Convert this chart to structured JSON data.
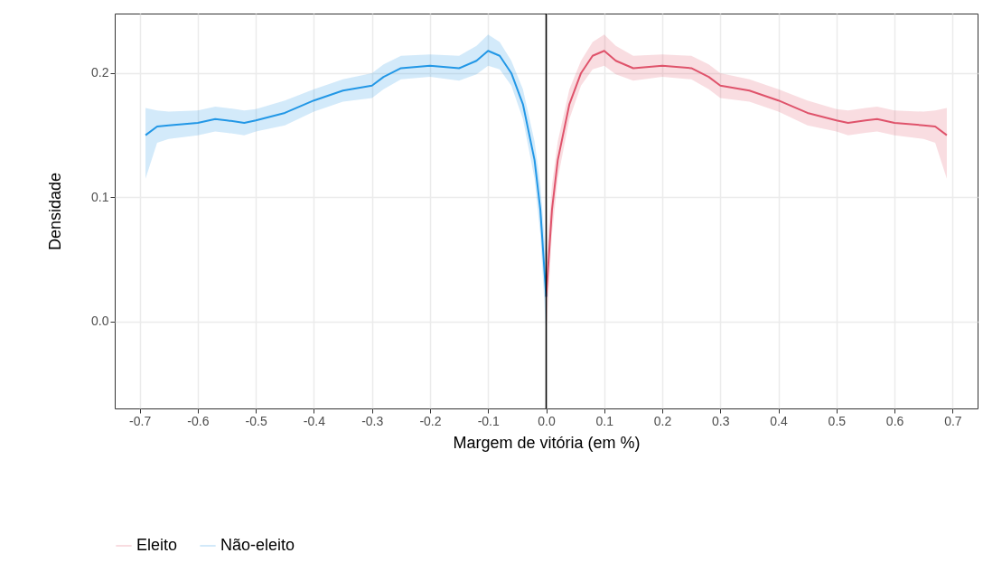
{
  "chart_data": {
    "type": "line",
    "xlabel": "Margem de vitória (em %)",
    "ylabel": "Densidade",
    "x": [
      -0.69,
      -0.67,
      -0.65,
      -0.6,
      -0.57,
      -0.55,
      -0.52,
      -0.5,
      -0.45,
      -0.4,
      -0.35,
      -0.3,
      -0.28,
      -0.25,
      -0.2,
      -0.15,
      -0.12,
      -0.1,
      -0.08,
      -0.06,
      -0.04,
      -0.02,
      -0.01,
      0
    ],
    "series": [
      {
        "name": "Eleito",
        "color": "#df536b",
        "x": [
          0,
          0.01,
          0.02,
          0.04,
          0.06,
          0.08,
          0.1,
          0.12,
          0.15,
          0.2,
          0.25,
          0.28,
          0.3,
          0.35,
          0.4,
          0.45,
          0.5,
          0.52,
          0.55,
          0.57,
          0.6,
          0.65,
          0.67,
          0.69
        ],
        "values": [
          0.02,
          0.09,
          0.13,
          0.175,
          0.2,
          0.214,
          0.218,
          0.21,
          0.204,
          0.206,
          0.204,
          0.197,
          0.19,
          0.186,
          0.178,
          0.168,
          0.162,
          0.16,
          0.162,
          0.163,
          0.16,
          0.158,
          0.157,
          0.15
        ],
        "lower": [
          -0.01,
          0.07,
          0.115,
          0.163,
          0.19,
          0.203,
          0.206,
          0.199,
          0.194,
          0.197,
          0.195,
          0.187,
          0.18,
          0.177,
          0.169,
          0.158,
          0.153,
          0.15,
          0.152,
          0.153,
          0.15,
          0.147,
          0.144,
          0.115
        ],
        "upper": [
          0.05,
          0.11,
          0.145,
          0.187,
          0.21,
          0.225,
          0.231,
          0.222,
          0.214,
          0.215,
          0.214,
          0.207,
          0.2,
          0.195,
          0.187,
          0.178,
          0.171,
          0.17,
          0.172,
          0.173,
          0.17,
          0.169,
          0.17,
          0.172
        ]
      },
      {
        "name": "Não-eleito",
        "color": "#2297e6",
        "values": [
          0.15,
          0.157,
          0.158,
          0.16,
          0.163,
          0.162,
          0.16,
          0.162,
          0.168,
          0.178,
          0.186,
          0.19,
          0.197,
          0.204,
          0.206,
          0.204,
          0.21,
          0.218,
          0.214,
          0.2,
          0.175,
          0.13,
          0.09,
          0.02
        ],
        "lower": [
          0.115,
          0.144,
          0.147,
          0.15,
          0.153,
          0.152,
          0.15,
          0.153,
          0.158,
          0.169,
          0.177,
          0.18,
          0.187,
          0.195,
          0.197,
          0.194,
          0.199,
          0.206,
          0.203,
          0.19,
          0.163,
          0.115,
          0.07,
          -0.01
        ],
        "upper": [
          0.172,
          0.17,
          0.169,
          0.17,
          0.173,
          0.172,
          0.17,
          0.171,
          0.178,
          0.187,
          0.195,
          0.2,
          0.207,
          0.214,
          0.215,
          0.214,
          0.222,
          0.231,
          0.225,
          0.21,
          0.187,
          0.145,
          0.11,
          0.05
        ]
      }
    ],
    "xlim": [
      -0.743,
      0.743
    ],
    "ylim": [
      -0.07,
      0.248
    ],
    "xticks": [
      -0.7,
      -0.6,
      -0.5,
      -0.4,
      -0.3,
      -0.2,
      -0.1,
      {
        "value": 0,
        "label": "0.0"
      },
      0.1,
      0.2,
      0.3,
      0.4,
      0.5,
      0.6,
      0.7
    ],
    "yticks": [
      {
        "value": 0,
        "label": "0.0"
      },
      0.1,
      0.2
    ],
    "ref_lines": [
      {
        "axis": "x",
        "value": 0,
        "color": "#000000"
      }
    ],
    "grid": true,
    "legend": "bottom"
  }
}
